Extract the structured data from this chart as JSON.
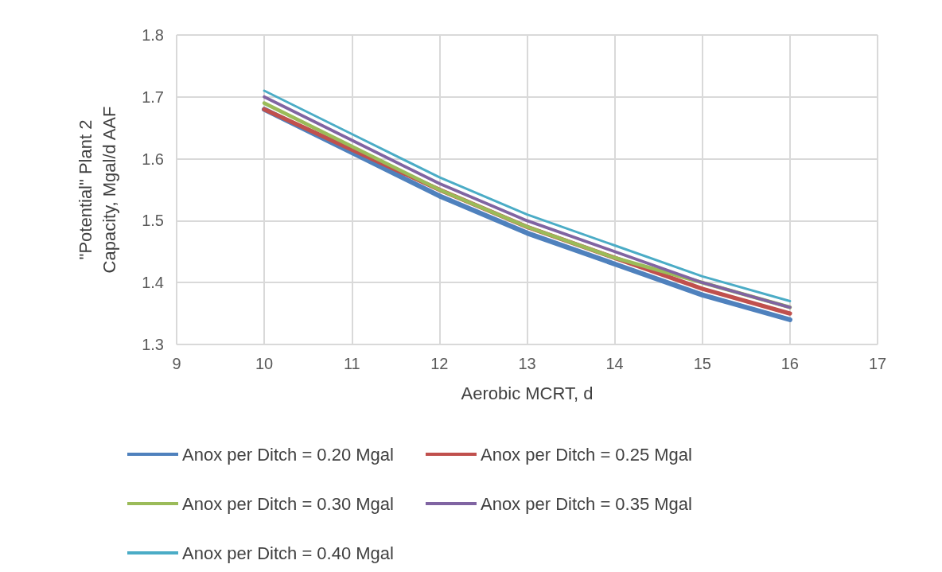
{
  "chart_data": {
    "type": "line",
    "xlabel": "Aerobic MCRT, d",
    "ylabel": "\"Potential\" Plant 2\nCapacity, Mgal/d AAF",
    "x": [
      10,
      11,
      12,
      13,
      14,
      15,
      16
    ],
    "series": [
      {
        "name": "Anox per Ditch = 0.20 Mgal",
        "color": "#4f81bd",
        "values": [
          1.68,
          1.61,
          1.54,
          1.48,
          1.43,
          1.38,
          1.34
        ]
      },
      {
        "name": "Anox per Ditch = 0.25 Mgal",
        "color": "#c0504d",
        "values": [
          1.68,
          1.615,
          1.55,
          1.49,
          1.44,
          1.39,
          1.35
        ]
      },
      {
        "name": "Anox per Ditch = 0.30 Mgal",
        "color": "#9bbb59",
        "values": [
          1.69,
          1.62,
          1.55,
          1.49,
          1.44,
          1.4,
          1.36
        ]
      },
      {
        "name": "Anox per Ditch = 0.35 Mgal",
        "color": "#8064a2",
        "values": [
          1.7,
          1.63,
          1.56,
          1.5,
          1.45,
          1.4,
          1.36
        ]
      },
      {
        "name": "Anox per Ditch = 0.40 Mgal",
        "color": "#4bacc6",
        "values": [
          1.71,
          1.64,
          1.57,
          1.51,
          1.46,
          1.41,
          1.37
        ]
      }
    ],
    "xlim": [
      9,
      17
    ],
    "xticks": [
      9,
      10,
      11,
      12,
      13,
      14,
      15,
      16,
      17
    ],
    "ylim": [
      1.3,
      1.8
    ],
    "yticks": [
      1.3,
      1.4,
      1.5,
      1.6,
      1.7,
      1.8
    ],
    "grid": true,
    "legend": "bottom",
    "marker": "none",
    "line_style": "solid"
  }
}
